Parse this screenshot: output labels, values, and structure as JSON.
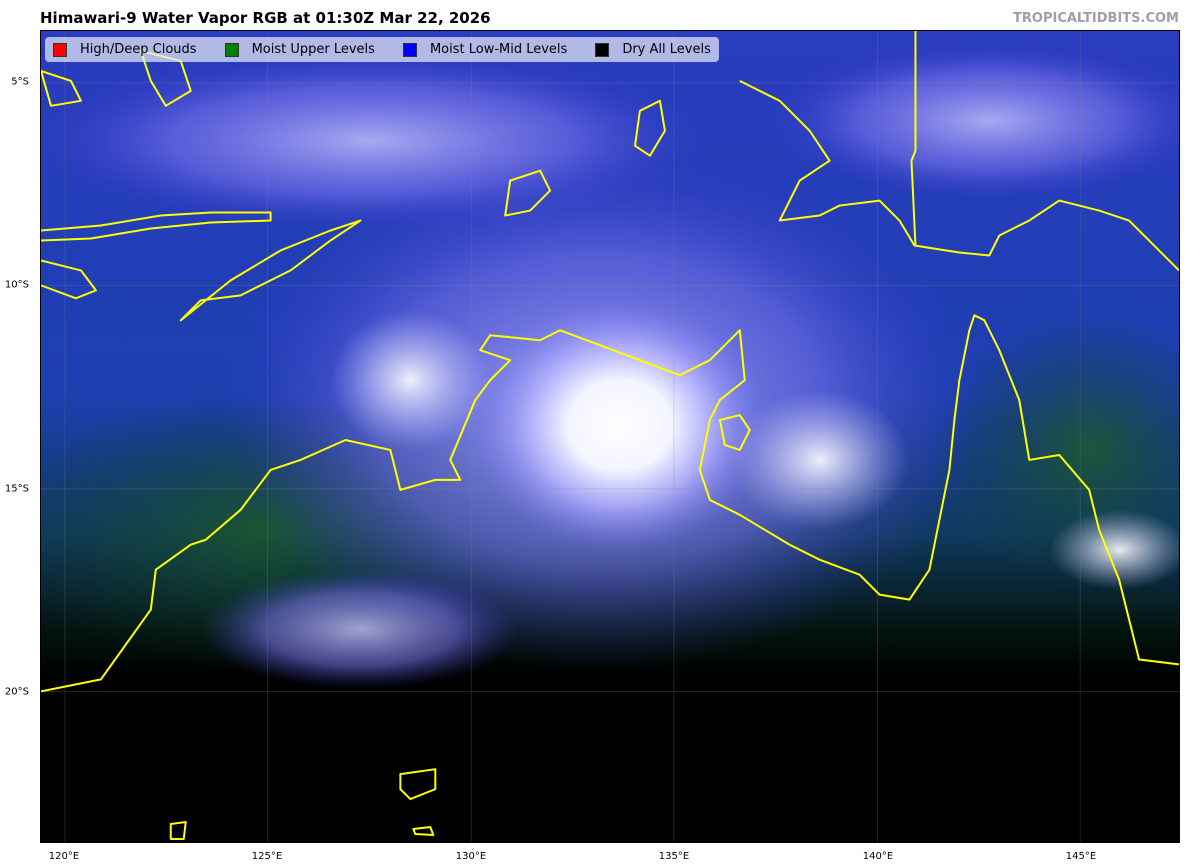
{
  "title": "Himawari-9 Water Vapor RGB at 01:30Z Mar 22, 2026",
  "credit": "TROPICALTIDBITS.COM",
  "legend": [
    {
      "label": "High/Deep Clouds",
      "color": "#ff0000"
    },
    {
      "label": "Moist Upper Levels",
      "color": "#008000"
    },
    {
      "label": "Moist Low-Mid Levels",
      "color": "#0000ff"
    },
    {
      "label": "Dry All Levels",
      "color": "#000000"
    }
  ],
  "x_ticks": [
    "120°E",
    "125°E",
    "130°E",
    "135°E",
    "140°E",
    "145°E"
  ],
  "y_ticks": [
    "5°S",
    "10°S",
    "15°S",
    "20°S"
  ],
  "coastline_color": "#ffff00"
}
